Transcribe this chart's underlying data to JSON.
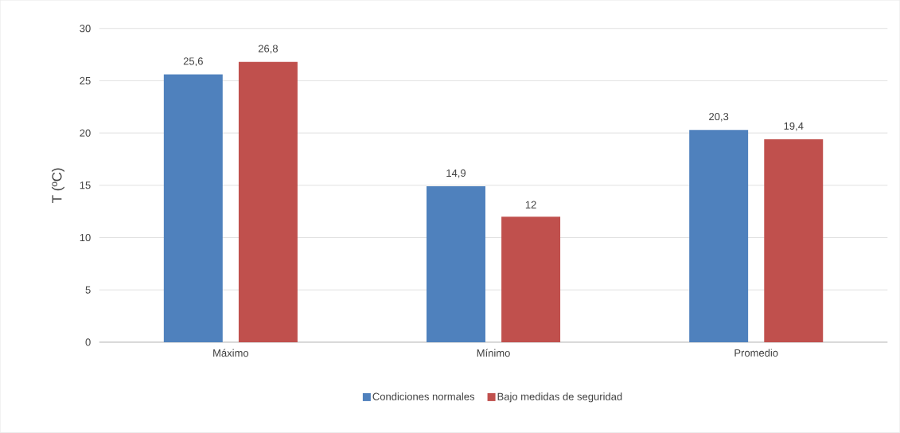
{
  "chart_data": {
    "type": "bar",
    "ylabel": "T (ºC)",
    "categories": [
      "Máximo",
      "Mínimo",
      "Promedio"
    ],
    "series": [
      {
        "name": "Condiciones normales",
        "color": "#4f81bd",
        "values": [
          25.6,
          14.9,
          20.3
        ],
        "value_labels": [
          "25,6",
          "14,9",
          "20,3"
        ]
      },
      {
        "name": "Bajo medidas de seguridad",
        "color": "#c0504d",
        "values": [
          26.8,
          12,
          19.4
        ],
        "value_labels": [
          "26,8",
          "12",
          "19,4"
        ]
      }
    ],
    "ylim": [
      0,
      30
    ],
    "yticks": [
      0,
      5,
      10,
      15,
      20,
      25,
      30
    ],
    "grid": "y",
    "legend": "bottom"
  }
}
